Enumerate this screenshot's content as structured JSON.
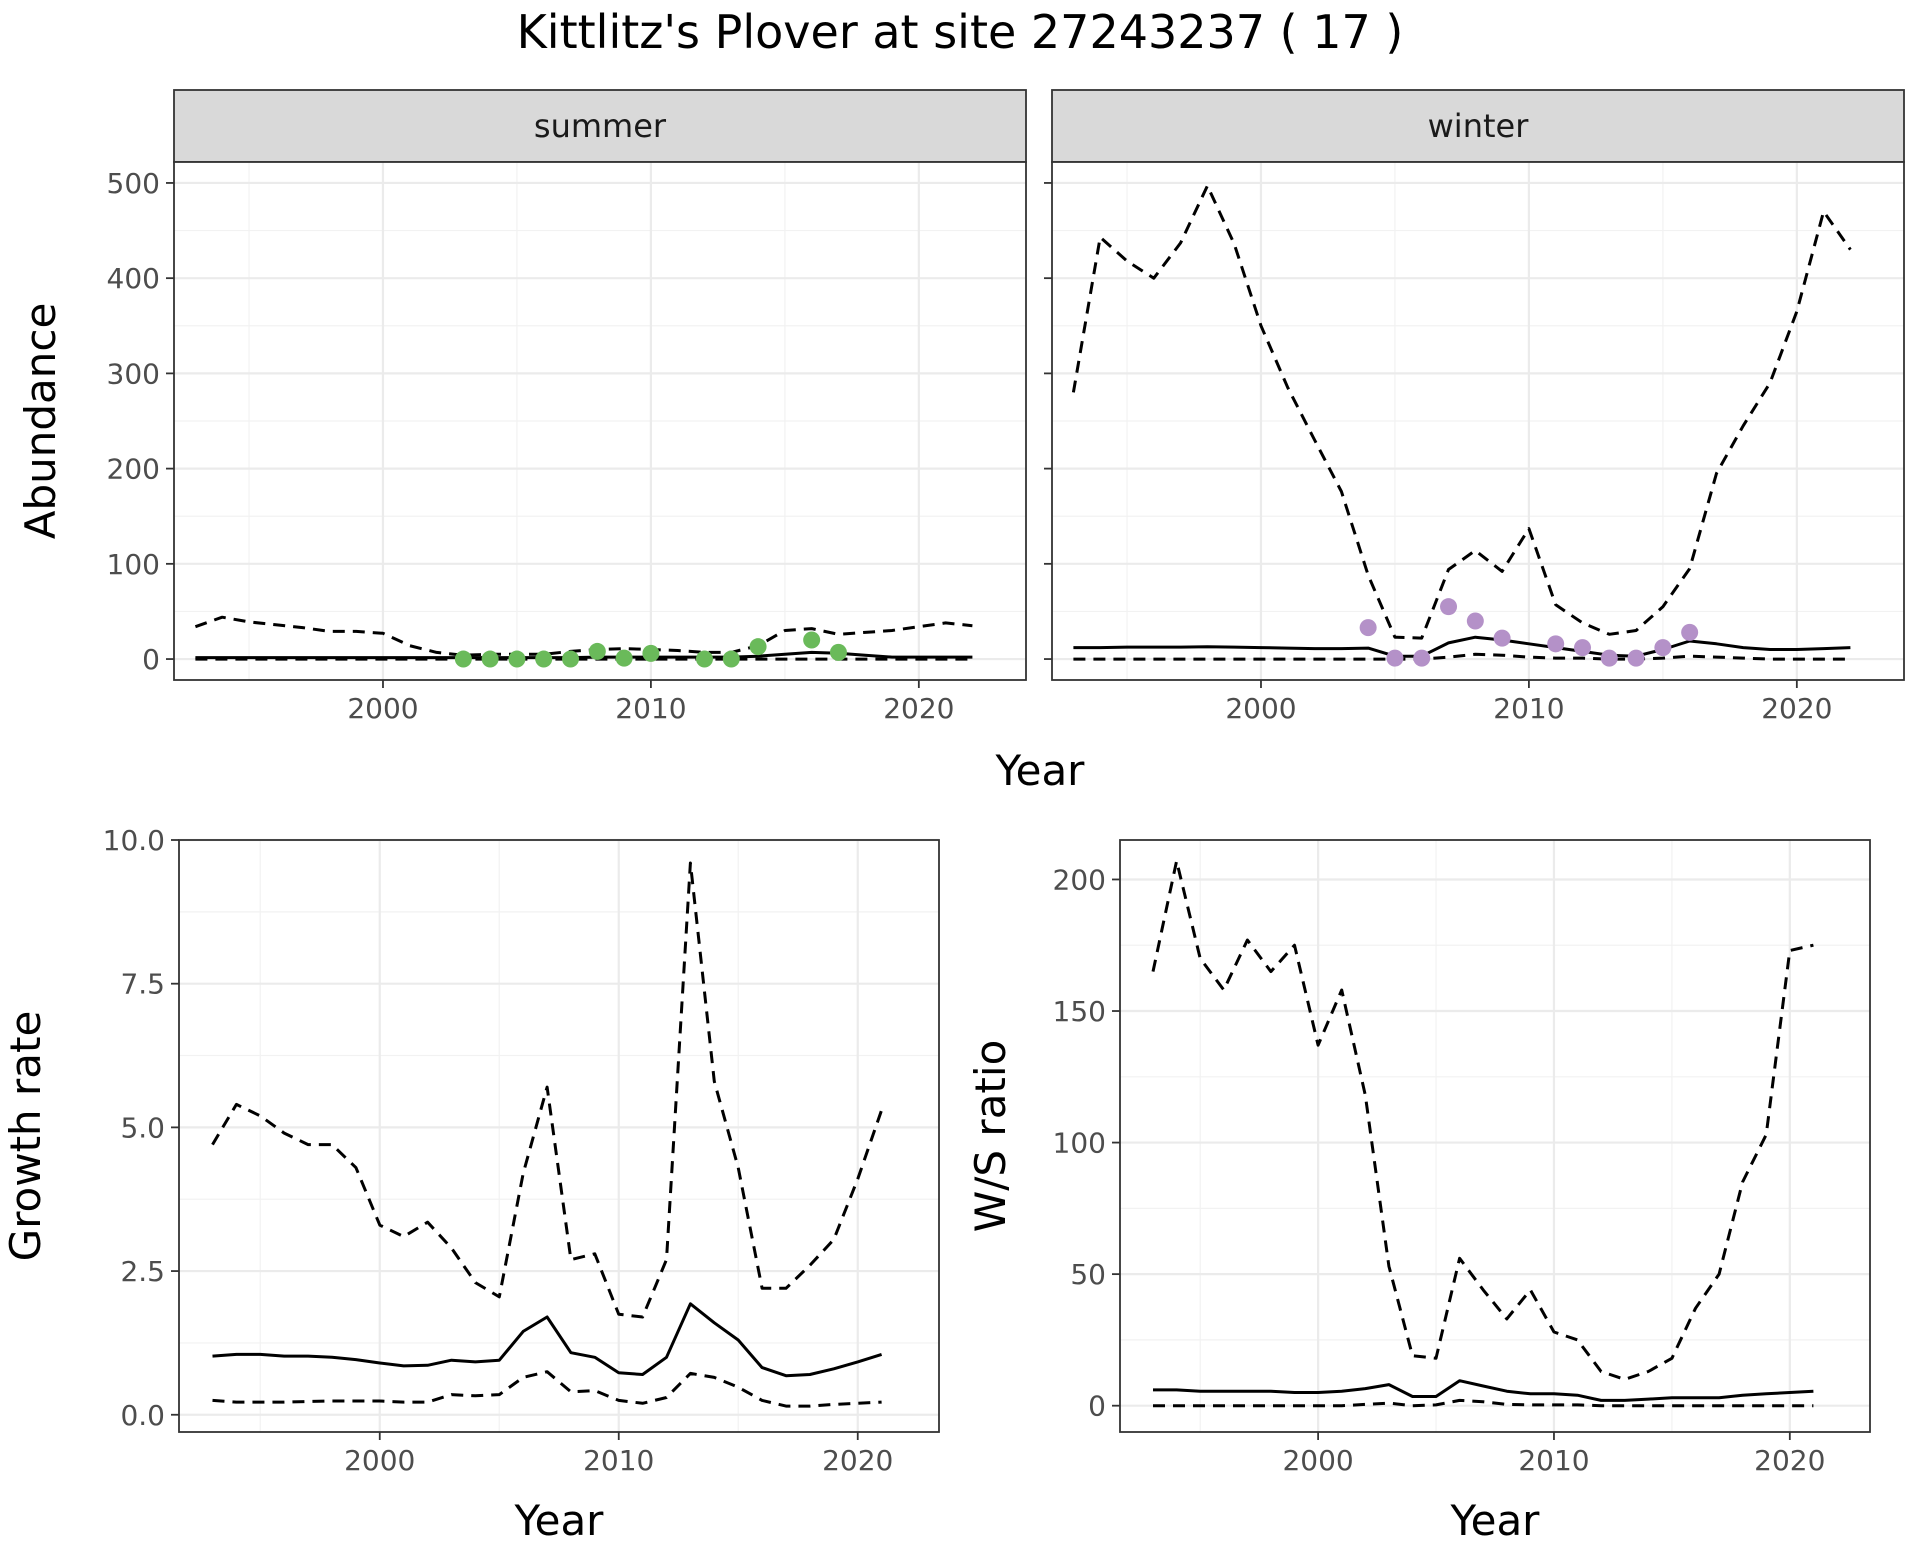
{
  "figure": {
    "title": "Kittlitz's Plover at site 27243237 ( 17 )",
    "abundance_xlabel": "Year",
    "abundance_ylabel": "Abundance"
  },
  "chart_data": [
    {
      "id": "summer",
      "type": "line",
      "strip_label": "summer",
      "xlabel": "",
      "ylabel": "Abundance",
      "xlim": [
        1992.2,
        2024.0
      ],
      "ylim": [
        -22,
        522
      ],
      "xticks": [
        2000,
        2010,
        2020
      ],
      "yticks": [
        0,
        100,
        200,
        300,
        400,
        500
      ],
      "grid": true,
      "series": [
        {
          "style": "solid",
          "x": [
            1993,
            1994,
            1995,
            1996,
            1997,
            1998,
            1999,
            2000,
            2001,
            2002,
            2003,
            2004,
            2005,
            2006,
            2007,
            2008,
            2009,
            2010,
            2011,
            2012,
            2013,
            2014,
            2015,
            2016,
            2017,
            2018,
            2019,
            2020,
            2021,
            2022
          ],
          "y": [
            1.5,
            1.5,
            1.5,
            1.5,
            1.5,
            1.5,
            1.5,
            1.5,
            1.5,
            1.5,
            1.5,
            1.5,
            1.5,
            1.5,
            1.5,
            2,
            2,
            2,
            2,
            2,
            2,
            3,
            5,
            7,
            6,
            4,
            2,
            2,
            2,
            2
          ]
        },
        {
          "style": "dashed",
          "x": [
            1993,
            1994,
            1995,
            1996,
            1997,
            1998,
            1999,
            2000,
            2001,
            2002,
            2003,
            2004,
            2005,
            2006,
            2007,
            2008,
            2009,
            2010,
            2011,
            2012,
            2013,
            2014,
            2015,
            2016,
            2017,
            2018,
            2019,
            2020,
            2021,
            2022
          ],
          "y": [
            34,
            44,
            39,
            36,
            33,
            29,
            29,
            27,
            14,
            7,
            4,
            5,
            5,
            5,
            8,
            10,
            11,
            10,
            9,
            7,
            7,
            14,
            30,
            32,
            26,
            28,
            30,
            34,
            38,
            35
          ]
        },
        {
          "style": "dashed",
          "x": [
            1993,
            1994,
            1995,
            1996,
            1997,
            1998,
            1999,
            2000,
            2001,
            2002,
            2003,
            2004,
            2005,
            2006,
            2007,
            2008,
            2009,
            2010,
            2011,
            2012,
            2013,
            2014,
            2015,
            2016,
            2017,
            2018,
            2019,
            2020,
            2021,
            2022
          ],
          "y": [
            0,
            0,
            0,
            0,
            0,
            0,
            0,
            0,
            0,
            0,
            0,
            0,
            0,
            0,
            0,
            0,
            0,
            0,
            0,
            0,
            0,
            0,
            0,
            0,
            0,
            0,
            0,
            0,
            0,
            0
          ]
        }
      ],
      "points": {
        "color": "#6aba5a",
        "x": [
          2003,
          2004,
          2005,
          2006,
          2007,
          2008,
          2009,
          2010,
          2012,
          2013,
          2014,
          2016,
          2017
        ],
        "y": [
          0,
          0,
          0,
          0,
          0,
          8,
          1,
          6,
          0,
          0,
          13,
          20,
          7
        ]
      }
    },
    {
      "id": "winter",
      "type": "line",
      "strip_label": "winter",
      "xlabel": "",
      "ylabel": "",
      "xlim": [
        1992.2,
        2024.0
      ],
      "ylim": [
        -22,
        522
      ],
      "xticks": [
        2000,
        2010,
        2020
      ],
      "yticks": [
        0,
        100,
        200,
        300,
        400,
        500
      ],
      "grid": true,
      "series": [
        {
          "style": "solid",
          "x": [
            1993,
            1994,
            1995,
            1996,
            1997,
            1998,
            1999,
            2000,
            2001,
            2002,
            2003,
            2004,
            2005,
            2006,
            2007,
            2008,
            2009,
            2010,
            2011,
            2012,
            2013,
            2014,
            2015,
            2016,
            2017,
            2018,
            2019,
            2020,
            2021,
            2022
          ],
          "y": [
            12,
            12,
            12.5,
            12.5,
            12.5,
            13,
            12.5,
            12,
            11.5,
            11,
            11,
            11.5,
            3,
            3,
            17,
            23,
            20,
            16,
            12,
            8,
            4,
            3,
            10,
            19,
            16,
            12,
            10,
            10,
            11,
            12
          ]
        },
        {
          "style": "dashed",
          "x": [
            1993,
            1994,
            1995,
            1996,
            1997,
            1998,
            1999,
            2000,
            2001,
            2002,
            2003,
            2004,
            2005,
            2006,
            2007,
            2008,
            2009,
            2010,
            2011,
            2012,
            2013,
            2014,
            2015,
            2016,
            2017,
            2018,
            2019,
            2020,
            2021,
            2022
          ],
          "y": [
            280,
            443,
            418,
            400,
            437,
            497,
            436,
            350,
            285,
            230,
            176,
            88,
            23,
            22,
            94,
            114,
            92,
            137,
            57,
            38,
            26,
            30,
            55,
            95,
            195,
            245,
            290,
            365,
            470,
            430
          ]
        },
        {
          "style": "dashed",
          "x": [
            1993,
            1994,
            1995,
            1996,
            1997,
            1998,
            1999,
            2000,
            2001,
            2002,
            2003,
            2004,
            2005,
            2006,
            2007,
            2008,
            2009,
            2010,
            2011,
            2012,
            2013,
            2014,
            2015,
            2016,
            2017,
            2018,
            2019,
            2020,
            2021,
            2022
          ],
          "y": [
            0,
            0,
            0,
            0,
            0,
            0,
            0,
            0,
            0,
            0,
            0,
            0,
            0,
            0,
            2,
            5,
            4,
            2,
            1,
            1,
            0,
            0,
            1,
            3,
            2,
            1,
            0,
            0,
            0,
            0
          ]
        }
      ],
      "points": {
        "color": "#b491c8",
        "x": [
          2004,
          2005,
          2006,
          2007,
          2008,
          2009,
          2011,
          2012,
          2013,
          2014,
          2015,
          2016
        ],
        "y": [
          33,
          1,
          1,
          55,
          40,
          22,
          16,
          12,
          1,
          1,
          12,
          28
        ]
      }
    },
    {
      "id": "growth",
      "type": "line",
      "xlabel": "Year",
      "ylabel": "Growth rate",
      "xlim": [
        1991.6,
        2023.4
      ],
      "ylim": [
        -0.3,
        10.0
      ],
      "xticks": [
        2000,
        2010,
        2020
      ],
      "yticks": [
        0.0,
        2.5,
        5.0,
        7.5,
        10.0
      ],
      "ytick_labels": [
        "0.0",
        "2.5",
        "5.0",
        "7.5",
        "10.0"
      ],
      "grid": true,
      "series": [
        {
          "style": "solid",
          "x": [
            1993,
            1994,
            1995,
            1996,
            1997,
            1998,
            1999,
            2000,
            2001,
            2002,
            2003,
            2004,
            2005,
            2006,
            2007,
            2008,
            2009,
            2010,
            2011,
            2012,
            2013,
            2014,
            2015,
            2016,
            2017,
            2018,
            2019,
            2020,
            2021
          ],
          "y": [
            1.02,
            1.05,
            1.05,
            1.02,
            1.02,
            1.0,
            0.96,
            0.9,
            0.85,
            0.86,
            0.95,
            0.92,
            0.95,
            1.45,
            1.7,
            1.08,
            1.0,
            0.73,
            0.7,
            1.0,
            1.93,
            1.6,
            1.3,
            0.82,
            0.68,
            0.7,
            0.8,
            0.92,
            1.05
          ]
        },
        {
          "style": "dashed",
          "x": [
            1993,
            1994,
            1995,
            1996,
            1997,
            1998,
            1999,
            2000,
            2001,
            2002,
            2003,
            2004,
            2005,
            2006,
            2007,
            2008,
            2009,
            2010,
            2011,
            2012,
            2013,
            2014,
            2015,
            2016,
            2017,
            2018,
            2019,
            2020,
            2021
          ],
          "y": [
            4.7,
            5.4,
            5.2,
            4.9,
            4.7,
            4.7,
            4.3,
            3.3,
            3.1,
            3.35,
            2.9,
            2.3,
            2.05,
            4.2,
            5.7,
            2.7,
            2.8,
            1.75,
            1.7,
            2.7,
            9.6,
            5.8,
            4.3,
            2.2,
            2.2,
            2.6,
            3.05,
            4.1,
            5.3
          ]
        },
        {
          "style": "dashed",
          "x": [
            1993,
            1994,
            1995,
            1996,
            1997,
            1998,
            1999,
            2000,
            2001,
            2002,
            2003,
            2004,
            2005,
            2006,
            2007,
            2008,
            2009,
            2010,
            2011,
            2012,
            2013,
            2014,
            2015,
            2016,
            2017,
            2018,
            2019,
            2020,
            2021
          ],
          "y": [
            0.25,
            0.22,
            0.22,
            0.22,
            0.23,
            0.24,
            0.24,
            0.24,
            0.22,
            0.22,
            0.35,
            0.33,
            0.35,
            0.65,
            0.75,
            0.4,
            0.42,
            0.25,
            0.2,
            0.3,
            0.72,
            0.65,
            0.48,
            0.25,
            0.15,
            0.15,
            0.18,
            0.2,
            0.22
          ]
        }
      ]
    },
    {
      "id": "ratio",
      "type": "line",
      "xlabel": "Year",
      "ylabel": "W/S ratio",
      "xlim": [
        1991.6,
        2023.4
      ],
      "ylim": [
        -10,
        215
      ],
      "xticks": [
        2000,
        2010,
        2020
      ],
      "yticks": [
        0,
        50,
        100,
        150,
        200
      ],
      "grid": true,
      "series": [
        {
          "style": "solid",
          "x": [
            1993,
            1994,
            1995,
            1996,
            1997,
            1998,
            1999,
            2000,
            2001,
            2002,
            2003,
            2004,
            2005,
            2006,
            2007,
            2008,
            2009,
            2010,
            2011,
            2012,
            2013,
            2014,
            2015,
            2016,
            2017,
            2018,
            2019,
            2020,
            2021
          ],
          "y": [
            6,
            6,
            5.5,
            5.5,
            5.5,
            5.5,
            5,
            5,
            5.5,
            6.5,
            8,
            3.5,
            3.5,
            9.5,
            7.5,
            5.5,
            4.5,
            4.5,
            4,
            2,
            2,
            2.5,
            3,
            3,
            3,
            4,
            4.5,
            5,
            5.5
          ]
        },
        {
          "style": "dashed",
          "x": [
            1993,
            1994,
            1995,
            1996,
            1997,
            1998,
            1999,
            2000,
            2001,
            2002,
            2003,
            2004,
            2005,
            2006,
            2007,
            2008,
            2009,
            2010,
            2011,
            2012,
            2013,
            2014,
            2015,
            2016,
            2017,
            2018,
            2019,
            2020,
            2021
          ],
          "y": [
            165,
            207,
            170,
            158,
            177,
            165,
            175,
            137,
            158,
            118,
            53,
            19,
            18,
            56,
            44,
            33,
            44,
            28,
            25,
            13,
            10,
            13,
            18,
            37,
            50,
            85,
            103,
            173,
            175
          ]
        },
        {
          "style": "dashed",
          "x": [
            1993,
            1994,
            1995,
            1996,
            1997,
            1998,
            1999,
            2000,
            2001,
            2002,
            2003,
            2004,
            2005,
            2006,
            2007,
            2008,
            2009,
            2010,
            2011,
            2012,
            2013,
            2014,
            2015,
            2016,
            2017,
            2018,
            2019,
            2020,
            2021
          ],
          "y": [
            0,
            0,
            0,
            0,
            0,
            0,
            0,
            0,
            0,
            0.5,
            1,
            0,
            0.3,
            2,
            1.5,
            0.5,
            0.3,
            0.3,
            0.3,
            0,
            0,
            0,
            0,
            0,
            0,
            0,
            0,
            0,
            0
          ]
        }
      ]
    }
  ]
}
